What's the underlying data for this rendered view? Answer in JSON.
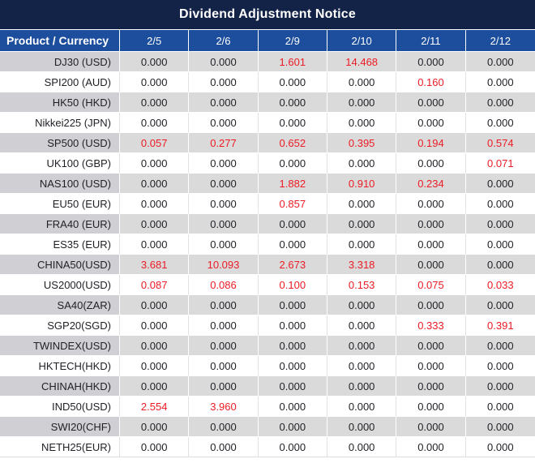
{
  "title": "Dividend Adjustment Notice",
  "colors": {
    "title_bg": "#132347",
    "header_bg": "#1C4E9D",
    "row_gray_product": "#D0D0D4",
    "row_gray_value": "#DADADA",
    "red_value": "#ED1B24",
    "text_dark": "#1F1F26"
  },
  "table": {
    "product_header": "Product / Currency",
    "date_headers": [
      "2/5",
      "2/6",
      "2/9",
      "2/10",
      "2/11",
      "2/12"
    ],
    "rows": [
      {
        "product": "DJ30 (USD)",
        "values": [
          "0.000",
          "0.000",
          "1.601",
          "14.468",
          "0.000",
          "0.000"
        ],
        "red_indices": [
          2,
          3
        ]
      },
      {
        "product": "SPI200 (AUD)",
        "values": [
          "0.000",
          "0.000",
          "0.000",
          "0.000",
          "0.160",
          "0.000"
        ],
        "red_indices": [
          4
        ]
      },
      {
        "product": "HK50 (HKD)",
        "values": [
          "0.000",
          "0.000",
          "0.000",
          "0.000",
          "0.000",
          "0.000"
        ],
        "red_indices": []
      },
      {
        "product": "Nikkei225 (JPN)",
        "values": [
          "0.000",
          "0.000",
          "0.000",
          "0.000",
          "0.000",
          "0.000"
        ],
        "red_indices": []
      },
      {
        "product": "SP500 (USD)",
        "values": [
          "0.057",
          "0.277",
          "0.652",
          "0.395",
          "0.194",
          "0.574"
        ],
        "red_indices": [
          0,
          1,
          2,
          3,
          4,
          5
        ]
      },
      {
        "product": "UK100 (GBP)",
        "values": [
          "0.000",
          "0.000",
          "0.000",
          "0.000",
          "0.000",
          "0.071"
        ],
        "red_indices": [
          5
        ]
      },
      {
        "product": "NAS100 (USD)",
        "values": [
          "0.000",
          "0.000",
          "1.882",
          "0.910",
          "0.234",
          "0.000"
        ],
        "red_indices": [
          2,
          3,
          4
        ]
      },
      {
        "product": "EU50 (EUR)",
        "values": [
          "0.000",
          "0.000",
          "0.857",
          "0.000",
          "0.000",
          "0.000"
        ],
        "red_indices": [
          2
        ]
      },
      {
        "product": "FRA40 (EUR)",
        "values": [
          "0.000",
          "0.000",
          "0.000",
          "0.000",
          "0.000",
          "0.000"
        ],
        "red_indices": []
      },
      {
        "product": "ES35 (EUR)",
        "values": [
          "0.000",
          "0.000",
          "0.000",
          "0.000",
          "0.000",
          "0.000"
        ],
        "red_indices": []
      },
      {
        "product": "CHINA50(USD)",
        "values": [
          "3.681",
          "10.093",
          "2.673",
          "3.318",
          "0.000",
          "0.000"
        ],
        "red_indices": [
          0,
          1,
          2,
          3
        ]
      },
      {
        "product": "US2000(USD)",
        "values": [
          "0.087",
          "0.086",
          "0.100",
          "0.153",
          "0.075",
          "0.033"
        ],
        "red_indices": [
          0,
          1,
          2,
          3,
          4,
          5
        ]
      },
      {
        "product": "SA40(ZAR)",
        "values": [
          "0.000",
          "0.000",
          "0.000",
          "0.000",
          "0.000",
          "0.000"
        ],
        "red_indices": []
      },
      {
        "product": "SGP20(SGD)",
        "values": [
          "0.000",
          "0.000",
          "0.000",
          "0.000",
          "0.333",
          "0.391"
        ],
        "red_indices": [
          4,
          5
        ]
      },
      {
        "product": "TWINDEX(USD)",
        "values": [
          "0.000",
          "0.000",
          "0.000",
          "0.000",
          "0.000",
          "0.000"
        ],
        "red_indices": []
      },
      {
        "product": "HKTECH(HKD)",
        "values": [
          "0.000",
          "0.000",
          "0.000",
          "0.000",
          "0.000",
          "0.000"
        ],
        "red_indices": []
      },
      {
        "product": "CHINAH(HKD)",
        "values": [
          "0.000",
          "0.000",
          "0.000",
          "0.000",
          "0.000",
          "0.000"
        ],
        "red_indices": []
      },
      {
        "product": "IND50(USD)",
        "values": [
          "2.554",
          "3.960",
          "0.000",
          "0.000",
          "0.000",
          "0.000"
        ],
        "red_indices": [
          0,
          1
        ]
      },
      {
        "product": "SWI20(CHF)",
        "values": [
          "0.000",
          "0.000",
          "0.000",
          "0.000",
          "0.000",
          "0.000"
        ],
        "red_indices": []
      },
      {
        "product": "NETH25(EUR)",
        "values": [
          "0.000",
          "0.000",
          "0.000",
          "0.000",
          "0.000",
          "0.000"
        ],
        "red_indices": []
      }
    ]
  }
}
